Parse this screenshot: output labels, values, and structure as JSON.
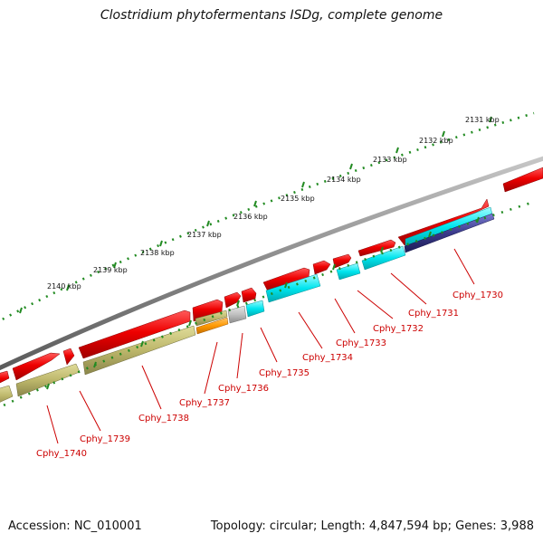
{
  "title": "Clostridium phytofermentans ISDg, complete genome",
  "footer": {
    "accession": "Accession: NC_010001",
    "summary": "Topology: circular; Length: 4,847,594 bp; Genes: 3,988"
  },
  "scale_labels": [
    "2131 kbp",
    "2132 kbp",
    "2133 kbp",
    "2134 kbp",
    "2135 kbp",
    "2136 kbp",
    "2137 kbp",
    "2138 kbp",
    "2139 kbp",
    "2140 kbp"
  ],
  "gene_labels": [
    "Cphy_1730",
    "Cphy_1731",
    "Cphy_1732",
    "Cphy_1733",
    "Cphy_1734",
    "Cphy_1735",
    "Cphy_1736",
    "Cphy_1737",
    "Cphy_1738",
    "Cphy_1739",
    "Cphy_1740"
  ],
  "colors": {
    "backbone": "#8a8a8a",
    "cds": "#ee0000",
    "cds_dark": "#b00000",
    "cog_khaki": "#bdb76b",
    "cog_cyan": "#00e5ee",
    "cog_orange": "#ff9900",
    "cog_grey": "#c0c0c0",
    "cog_navy": "#3a3a8a",
    "ticks": "#228b22",
    "label_red": "#cc0000"
  }
}
